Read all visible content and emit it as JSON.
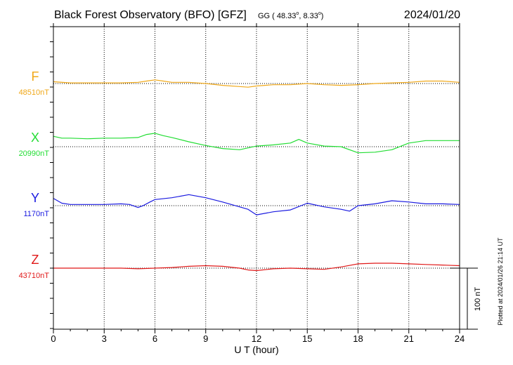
{
  "header": {
    "title": "Black Forest Observatory (BFO)  [GFZ]",
    "coords_prefix": "GG ( 48.33",
    "coords_sep": ",   8.33",
    "coords_suffix": ")",
    "degree_symbol": "o",
    "date": "2024/01/20"
  },
  "footer": {
    "plotted_note": "Plotted at 2024/01/26 21:14 UT",
    "scale_label": "100 nT"
  },
  "chart_data": {
    "type": "line",
    "xlabel": "U T (hour)",
    "xlim": [
      0,
      24
    ],
    "x_ticks": [
      0,
      3,
      6,
      9,
      12,
      15,
      18,
      21,
      24
    ],
    "x_tick_labels": [
      "0",
      "3",
      "6",
      "9",
      "12",
      "15",
      "18",
      "21",
      "24"
    ],
    "grid": true,
    "scale_bar_nT": 100,
    "series": [
      {
        "name": "F",
        "baseline_label": "48510nT",
        "baseline_nT": 48510,
        "color": "#f0a818",
        "x": [
          0,
          1,
          2,
          3,
          4,
          5,
          5.5,
          6,
          6.5,
          7,
          8,
          9,
          10,
          11,
          11.5,
          12,
          13,
          14,
          15,
          16,
          17,
          18,
          19,
          20,
          21,
          22,
          23,
          24
        ],
        "y": [
          48513,
          48511,
          48511,
          48511,
          48511,
          48512,
          48514,
          48516,
          48514,
          48512,
          48512,
          48510,
          48507,
          48505,
          48504,
          48506,
          48508,
          48508,
          48510,
          48508,
          48507,
          48508,
          48510,
          48511,
          48512,
          48514,
          48514,
          48512
        ]
      },
      {
        "name": "X",
        "baseline_label": "20990nT",
        "baseline_nT": 20990,
        "color": "#22dd33",
        "x": [
          0,
          0.5,
          1,
          2,
          3,
          4,
          5,
          5.5,
          6,
          6.5,
          7,
          8,
          9,
          10,
          11,
          12,
          13,
          14,
          14.5,
          15,
          16,
          17,
          18,
          19,
          20,
          21,
          22,
          23,
          24
        ],
        "y": [
          21007,
          21004,
          21004,
          21003,
          21004,
          21004,
          21005,
          21010,
          21012,
          21008,
          21005,
          20998,
          20992,
          20987,
          20985,
          20991,
          20993,
          20996,
          21002,
          20996,
          20991,
          20990,
          20980,
          20981,
          20985,
          20996,
          21000,
          21000,
          21000
        ]
      },
      {
        "name": "Y",
        "baseline_label": "1170nT",
        "baseline_nT": 1170,
        "color": "#1a1ae0",
        "x": [
          0,
          0.5,
          1,
          2,
          3,
          4,
          4.5,
          5,
          5.3,
          5.7,
          6,
          7,
          8,
          9,
          10,
          11,
          11.5,
          12,
          13,
          14,
          15,
          16,
          17,
          17.5,
          18,
          19,
          20,
          21,
          22,
          23,
          24
        ],
        "y": [
          1182,
          1174,
          1172,
          1172,
          1172,
          1173,
          1172,
          1167,
          1170,
          1176,
          1180,
          1183,
          1188,
          1183,
          1176,
          1168,
          1164,
          1155,
          1160,
          1163,
          1174,
          1168,
          1164,
          1161,
          1170,
          1173,
          1178,
          1176,
          1173,
          1173,
          1172
        ]
      },
      {
        "name": "Z",
        "baseline_label": "43710nT",
        "baseline_nT": 43710,
        "color": "#e01818",
        "x": [
          0,
          1,
          2,
          3,
          4,
          5,
          6,
          7,
          8,
          9,
          10,
          11,
          11.5,
          12,
          13,
          14,
          15,
          16,
          17,
          18,
          19,
          20,
          21,
          22,
          23,
          24
        ],
        "y": [
          43710,
          43710,
          43710,
          43710,
          43710,
          43709,
          43710,
          43711,
          43713,
          43714,
          43713,
          43710,
          43707,
          43706,
          43709,
          43710,
          43709,
          43708,
          43712,
          43717,
          43718,
          43718,
          43717,
          43716,
          43715,
          43714
        ]
      }
    ]
  }
}
